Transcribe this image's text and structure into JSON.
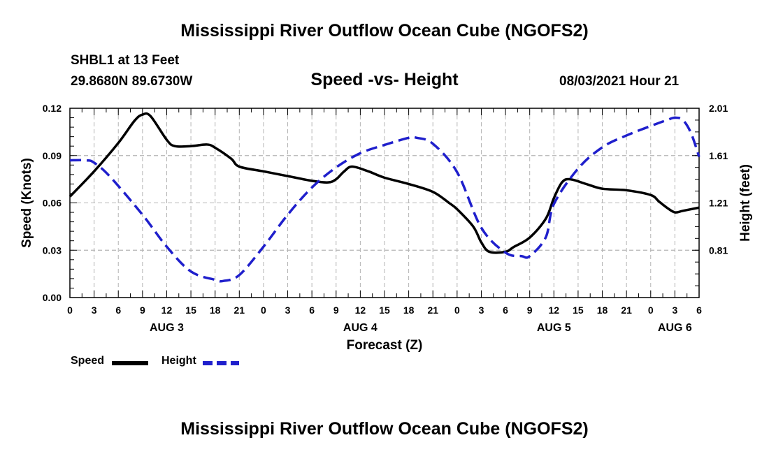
{
  "header": {
    "title": "Mississippi River Outflow Ocean Cube (NGOFS2)",
    "station": "SHBL1 at 13 Feet",
    "coords": "29.8680N  89.6730W",
    "subtitle": "Speed -vs- Height",
    "datetime": "08/03/2021 Hour 21"
  },
  "footer": {
    "title": "Mississippi River Outflow Ocean Cube (NGOFS2)"
  },
  "legend": {
    "speed_label": "Speed",
    "height_label": "Height"
  },
  "colors": {
    "speed": "#000000",
    "height": "#1f1fcc",
    "grid": "#b4b4b4"
  },
  "chart_data": {
    "type": "line",
    "title": "Speed -vs- Height",
    "xlabel": "Forecast (Z)",
    "ylabel": "Speed (Knots)",
    "y2label": "Height (feet)",
    "xlim": [
      0,
      78
    ],
    "ylim": [
      0,
      0.12
    ],
    "y2lim": [
      0.41,
      2.01
    ],
    "grid": true,
    "x_ticks": [
      0,
      3,
      6,
      9,
      12,
      15,
      18,
      21,
      24,
      27,
      30,
      33,
      36,
      39,
      42,
      45,
      48,
      51,
      54,
      57,
      60,
      63,
      66,
      69,
      72,
      75,
      78
    ],
    "x_tick_labels": [
      "0",
      "3",
      "6",
      "9",
      "12",
      "15",
      "18",
      "21",
      "0",
      "3",
      "6",
      "9",
      "12",
      "15",
      "18",
      "21",
      "0",
      "3",
      "6",
      "9",
      "12",
      "15",
      "18",
      "21",
      "0",
      "3",
      "6"
    ],
    "day_labels": [
      {
        "x": 12,
        "label": "AUG 3"
      },
      {
        "x": 36,
        "label": "AUG 4"
      },
      {
        "x": 60,
        "label": "AUG 5"
      },
      {
        "x": 75,
        "label": "AUG 6"
      }
    ],
    "y_ticks": [
      0,
      0.03,
      0.06,
      0.09,
      0.12
    ],
    "y_tick_labels": [
      "0.00",
      "0.03",
      "0.06",
      "0.09",
      "0.12"
    ],
    "y2_ticks": [
      0.81,
      1.21,
      1.61,
      2.01
    ],
    "y2_tick_labels": [
      "0.81",
      "1.21",
      "1.61",
      "2.01"
    ],
    "series": [
      {
        "name": "Speed",
        "axis": "left",
        "style": "solid",
        "x": [
          0,
          3,
          6,
          8,
          9,
          10,
          12,
          13,
          15,
          17,
          18,
          20,
          21,
          24,
          27,
          30,
          32,
          33,
          34,
          35,
          37,
          39,
          42,
          45,
          47,
          48,
          50,
          51,
          52,
          54,
          55,
          57,
          59,
          60,
          61,
          62,
          64,
          66,
          69,
          72,
          73,
          74,
          75,
          76,
          78
        ],
        "values": [
          0.064,
          0.08,
          0.098,
          0.112,
          0.116,
          0.115,
          0.1,
          0.096,
          0.096,
          0.097,
          0.095,
          0.088,
          0.083,
          0.08,
          0.077,
          0.074,
          0.073,
          0.075,
          0.08,
          0.083,
          0.08,
          0.076,
          0.072,
          0.067,
          0.06,
          0.056,
          0.045,
          0.035,
          0.029,
          0.029,
          0.032,
          0.038,
          0.05,
          0.063,
          0.073,
          0.075,
          0.072,
          0.069,
          0.068,
          0.065,
          0.061,
          0.057,
          0.054,
          0.055,
          0.057
        ]
      },
      {
        "name": "Height",
        "axis": "right",
        "style": "dashed",
        "x": [
          0,
          2,
          3,
          5,
          9,
          12,
          15,
          18,
          19,
          21,
          24,
          27,
          30,
          33,
          36,
          39,
          42,
          43,
          45,
          48,
          51,
          54,
          56,
          57,
          59,
          60,
          63,
          66,
          69,
          72,
          74,
          75,
          76,
          77,
          78
        ],
        "values": [
          1.57,
          1.57,
          1.55,
          1.43,
          1.11,
          0.84,
          0.63,
          0.56,
          0.55,
          0.6,
          0.84,
          1.11,
          1.34,
          1.51,
          1.63,
          1.7,
          1.76,
          1.76,
          1.71,
          1.47,
          1.0,
          0.79,
          0.76,
          0.76,
          0.92,
          1.2,
          1.5,
          1.68,
          1.78,
          1.86,
          1.91,
          1.93,
          1.91,
          1.8,
          1.6
        ]
      }
    ]
  }
}
